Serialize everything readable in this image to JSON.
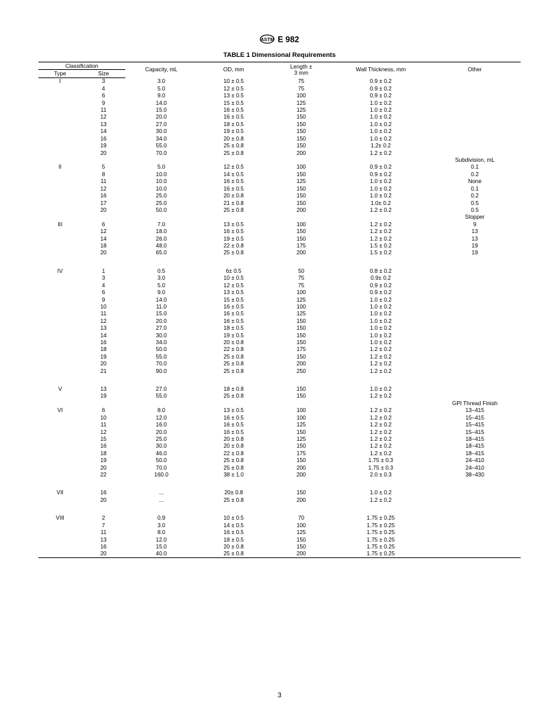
{
  "header_label": "E 982",
  "table_title": "TABLE 1  Dimensional Requirements",
  "page_number": "3",
  "columns": {
    "classification": "Classification",
    "type": "Type",
    "size": "Size",
    "capacity": "Capacity, mL",
    "od": "OD, mm",
    "length": "Length ±\n3 mm",
    "wall": "Wall Thickness, mm",
    "other": "Other"
  },
  "section_labels": {
    "subdivision": "Subdivision, mL",
    "stopper": "Stopper",
    "gpi": "GPI Thread Finish"
  },
  "groups": [
    {
      "type": "I",
      "rows": [
        {
          "size": "3",
          "cap": "3.0",
          "od": "10 ± 0.5",
          "len": "75",
          "wall": "0.9 ± 0.2",
          "oth": ""
        },
        {
          "size": "4",
          "cap": "5.0",
          "od": "12 ± 0.5",
          "len": "75",
          "wall": "0.9 ± 0.2",
          "oth": ""
        },
        {
          "size": "6",
          "cap": "9.0",
          "od": "13 ± 0.5",
          "len": "100",
          "wall": "0.9 ± 0.2",
          "oth": ""
        },
        {
          "size": "9",
          "cap": "14.0",
          "od": "15 ± 0.5",
          "len": "125",
          "wall": "1.0 ± 0.2",
          "oth": ""
        },
        {
          "size": "11",
          "cap": "15.0",
          "od": "16 ± 0.5",
          "len": "125",
          "wall": "1.0 ± 0.2",
          "oth": ""
        },
        {
          "size": "12",
          "cap": "20.0",
          "od": "16 ± 0.5",
          "len": "150",
          "wall": "1.0 ± 0.2",
          "oth": ""
        },
        {
          "size": "13",
          "cap": "27.0",
          "od": "18 ± 0.5",
          "len": "150",
          "wall": "1.0 ± 0.2",
          "oth": ""
        },
        {
          "size": "14",
          "cap": "30.0",
          "od": "19 ± 0.5",
          "len": "150",
          "wall": "1.0 ± 0.2",
          "oth": ""
        },
        {
          "size": "16",
          "cap": "34.0",
          "od": "20 ± 0.8",
          "len": "150",
          "wall": "1.0 ± 0.2",
          "oth": ""
        },
        {
          "size": "19",
          "cap": "55.0",
          "od": "25 ± 0.8",
          "len": "150",
          "wall": "1.2± 0.2",
          "oth": ""
        },
        {
          "size": "20",
          "cap": "70.0",
          "od": "25 ± 0.8",
          "len": "200",
          "wall": "1.2 ± 0.2",
          "oth": ""
        }
      ]
    },
    {
      "type": "II",
      "subhead": "subdivision",
      "rows": [
        {
          "size": "5",
          "cap": "5.0",
          "od": "12 ± 0.5",
          "len": "100",
          "wall": "0.9 ± 0.2",
          "oth": "0.1"
        },
        {
          "size": "8",
          "cap": "10.0",
          "od": "14 ± 0.5",
          "len": "150",
          "wall": "0.9 ± 0.2",
          "oth": "0.2"
        },
        {
          "size": "11",
          "cap": "10.0",
          "od": "16 ± 0.5",
          "len": "125",
          "wall": "1.0 ± 0.2",
          "oth": "None"
        },
        {
          "size": "12",
          "cap": "10.0",
          "od": "16 ± 0.5",
          "len": "150",
          "wall": "1.0 ± 0.2",
          "oth": "0.1"
        },
        {
          "size": "16",
          "cap": "25.0",
          "od": "20 ± 0.8",
          "len": "150",
          "wall": "1.0 ± 0.2",
          "oth": "0.2"
        },
        {
          "size": "17",
          "cap": "25.0",
          "od": "21 ± 0.8",
          "len": "150",
          "wall": "1.0± 0.2",
          "oth": "0.5"
        },
        {
          "size": "20",
          "cap": "50.0",
          "od": "25 ± 0.8",
          "len": "200",
          "wall": "1.2 ± 0.2",
          "oth": "0.5"
        }
      ]
    },
    {
      "type": "III",
      "subhead": "stopper",
      "rows": [
        {
          "size": "6",
          "cap": "7.0",
          "od": "13 ± 0.5",
          "len": "100",
          "wall": "1.2 ± 0.2",
          "oth": "9"
        },
        {
          "size": "12",
          "cap": "18.0",
          "od": "16 ± 0.5",
          "len": "150",
          "wall": "1.2 ± 0.2",
          "oth": "13"
        },
        {
          "size": "14",
          "cap": "26.0",
          "od": "19 ± 0.5",
          "len": "150",
          "wall": "1.2 ± 0.2",
          "oth": "13"
        },
        {
          "size": "18",
          "cap": "48.0",
          "od": "22 ± 0.8",
          "len": "175",
          "wall": "1.5 ± 0.2",
          "oth": "19"
        },
        {
          "size": "20",
          "cap": "65.0",
          "od": "25 ± 0.8",
          "len": "200",
          "wall": "1.5 ± 0.2",
          "oth": "19"
        }
      ]
    },
    {
      "type": "IV",
      "rows": [
        {
          "size": "1",
          "cap": "0.5",
          "od": "6± 0.5",
          "len": "50",
          "wall": "0.8 ± 0.2",
          "oth": ""
        },
        {
          "size": "3",
          "cap": "3.0",
          "od": "10 ± 0.5",
          "len": "75",
          "wall": "0.9± 0.2",
          "oth": ""
        },
        {
          "size": "4",
          "cap": "5.0",
          "od": "12 ± 0.5",
          "len": "75",
          "wall": "0.9 ± 0.2",
          "oth": ""
        },
        {
          "size": "6",
          "cap": "9.0",
          "od": "13 ± 0.5",
          "len": "100",
          "wall": "0.9 ± 0.2",
          "oth": ""
        },
        {
          "size": "9",
          "cap": "14.0",
          "od": "15 ± 0.5",
          "len": "125",
          "wall": "1.0 ± 0.2",
          "oth": ""
        },
        {
          "size": "10",
          "cap": "11.0",
          "od": "16 ± 0.5",
          "len": "100",
          "wall": "1.0 ± 0.2",
          "oth": ""
        },
        {
          "size": "11",
          "cap": "15.0",
          "od": "16 ± 0.5",
          "len": "125",
          "wall": "1.0 ± 0.2",
          "oth": ""
        },
        {
          "size": "12",
          "cap": "20.0",
          "od": "16 ± 0.5",
          "len": "150",
          "wall": "1.0 ± 0.2",
          "oth": ""
        },
        {
          "size": "13",
          "cap": "27.0",
          "od": "18 ± 0.5",
          "len": "150",
          "wall": "1.0 ± 0.2",
          "oth": ""
        },
        {
          "size": "14",
          "cap": "30.0",
          "od": "19 ± 0.5",
          "len": "150",
          "wall": "1.0 ± 0.2",
          "oth": ""
        },
        {
          "size": "16",
          "cap": "34.0",
          "od": "20 ± 0.8",
          "len": "150",
          "wall": "1.0 ± 0.2",
          "oth": ""
        },
        {
          "size": "18",
          "cap": "50.0",
          "od": "22 ± 0.8",
          "len": "175",
          "wall": "1.2 ± 0.2",
          "oth": ""
        },
        {
          "size": "19",
          "cap": "55.0",
          "od": "25 ± 0.8",
          "len": "150",
          "wall": "1.2 ± 0.2",
          "oth": ""
        },
        {
          "size": "20",
          "cap": "70.0",
          "od": "25 ± 0.8",
          "len": "200",
          "wall": "1.2 ± 0.2",
          "oth": ""
        },
        {
          "size": "21",
          "cap": "90.0",
          "od": "25 ± 0.8",
          "len": "250",
          "wall": "1.2 ± 0.2",
          "oth": ""
        }
      ]
    },
    {
      "type": "V",
      "rows": [
        {
          "size": "13",
          "cap": "27.0",
          "od": "18 ± 0.8",
          "len": "150",
          "wall": "1.0 ± 0.2",
          "oth": ""
        },
        {
          "size": "19",
          "cap": "55.0",
          "od": "25 ± 0.8",
          "len": "150",
          "wall": "1.2 ± 0.2",
          "oth": ""
        }
      ]
    },
    {
      "type": "VI",
      "subhead": "gpi",
      "rows": [
        {
          "size": "6",
          "cap": "8.0",
          "od": "13 ± 0.5",
          "len": "100",
          "wall": "1.2  ± 0.2",
          "oth": "13–415"
        },
        {
          "size": "10",
          "cap": "12.0",
          "od": "16 ± 0.5",
          "len": "100",
          "wall": "1.2  ± 0.2",
          "oth": "15–415"
        },
        {
          "size": "11",
          "cap": "16.0",
          "od": "16 ± 0.5",
          "len": "125",
          "wall": "1.2  ± 0.2",
          "oth": "15–415"
        },
        {
          "size": "12",
          "cap": "20.0",
          "od": "16 ± 0.5",
          "len": "150",
          "wall": "1.2  ± 0.2",
          "oth": "15–415"
        },
        {
          "size": "15",
          "cap": "25.0",
          "od": "20 ± 0.8",
          "len": "125",
          "wall": "1.2  ± 0.2",
          "oth": "18–415"
        },
        {
          "size": "16",
          "cap": "30.0",
          "od": "20 ± 0.8",
          "len": "150",
          "wall": "1.2  ± 0.2",
          "oth": "18–415"
        },
        {
          "size": "18",
          "cap": "46.0",
          "od": "22 ± 0.8",
          "len": "175",
          "wall": "1.2  ± 0.2",
          "oth": "18–415"
        },
        {
          "size": "19",
          "cap": "50.0",
          "od": "25 ± 0.8",
          "len": "150",
          "wall": "1.75 ± 0.3",
          "oth": "24–410"
        },
        {
          "size": "20",
          "cap": "70.0",
          "od": "25 ± 0.8",
          "len": "200",
          "wall": "1.75 ± 0.3",
          "oth": "24–410"
        },
        {
          "size": "22",
          "cap": "160.0",
          "od": "38 ± 1.0",
          "len": "200",
          "wall": "2.0  ± 0.3",
          "oth": "38–430"
        }
      ]
    },
    {
      "type": "VII",
      "rows": [
        {
          "size": "16",
          "cap": "...",
          "od": "20± 0.8",
          "len": "150",
          "wall": "1.0  ± 0.2",
          "oth": ""
        },
        {
          "size": "20",
          "cap": "...",
          "od": "25 ± 0.8",
          "len": "200",
          "wall": "1.2  ± 0.2",
          "oth": ""
        }
      ]
    },
    {
      "type": "VIII",
      "rows": [
        {
          "size": "2",
          "cap": "0.9",
          "od": "10 ± 0.5",
          "len": "70",
          "wall": "1.75 ± 0.25",
          "oth": ""
        },
        {
          "size": "7",
          "cap": "3.0",
          "od": "14 ± 0.5",
          "len": "100",
          "wall": "1.75 ± 0.25",
          "oth": ""
        },
        {
          "size": "11",
          "cap": "8.0",
          "od": "16 ± 0.5",
          "len": "125",
          "wall": "1.75 ± 0.25",
          "oth": ""
        },
        {
          "size": "13",
          "cap": "12.0",
          "od": "18 ± 0.5",
          "len": "150",
          "wall": "1.75 ± 0.25",
          "oth": ""
        },
        {
          "size": "16",
          "cap": "15.0",
          "od": "20 ± 0.8",
          "len": "150",
          "wall": "1.75 ± 0.25",
          "oth": ""
        },
        {
          "size": "20",
          "cap": "40.0",
          "od": "25 ± 0.8",
          "len": "200",
          "wall": "1.75 ± 0.25",
          "oth": ""
        }
      ]
    }
  ]
}
